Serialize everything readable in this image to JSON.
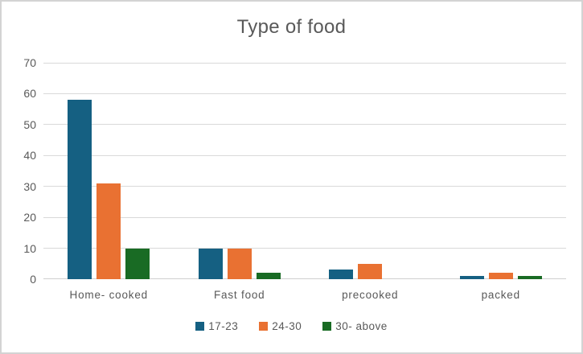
{
  "chart_data": {
    "type": "bar",
    "title": "Type of food",
    "categories": [
      "Home- cooked",
      "Fast food",
      "precooked",
      "packed"
    ],
    "series": [
      {
        "name": "17-23",
        "color": "#156082",
        "values": [
          58,
          10,
          3,
          1
        ]
      },
      {
        "name": "24-30",
        "color": "#E97132",
        "values": [
          31,
          10,
          5,
          2
        ]
      },
      {
        "name": "30- above",
        "color": "#196B24",
        "values": [
          10,
          2,
          0,
          1
        ]
      }
    ],
    "xlabel": "",
    "ylabel": "",
    "ylim": [
      0,
      70
    ],
    "yticks": [
      0,
      10,
      20,
      30,
      40,
      50,
      60,
      70
    ],
    "grid": true,
    "legend_position": "bottom"
  },
  "colors": {
    "grid": "#D9D9D9",
    "axis": "#D0D0D0",
    "text": "#595959",
    "frame_border": "#D3D3D3",
    "background": "#FFFFFF"
  }
}
